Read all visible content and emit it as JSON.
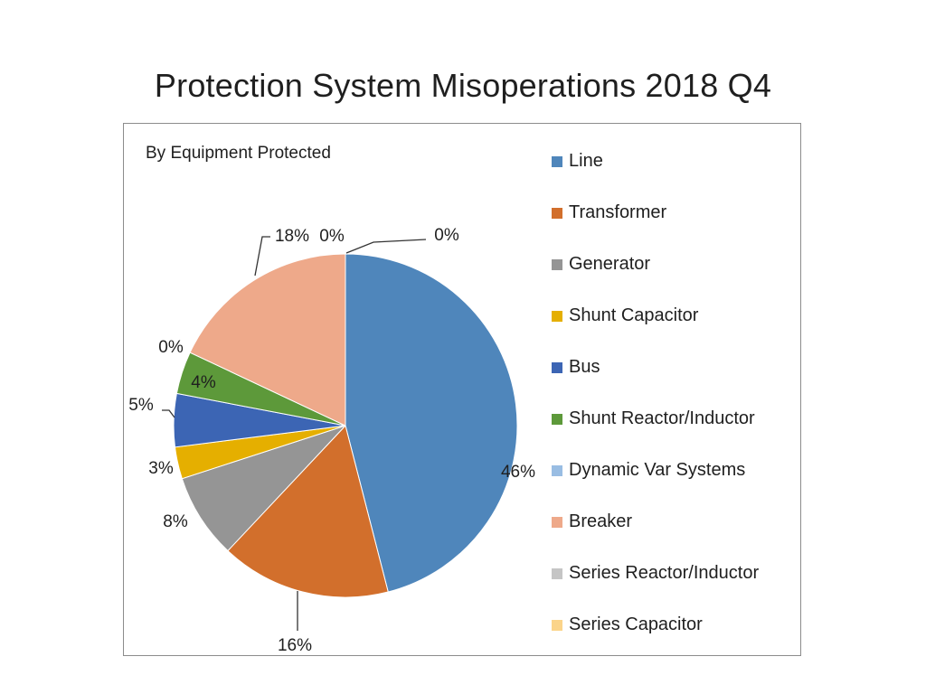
{
  "title": "Protection System Misoperations 2018 Q4",
  "chart_data": {
    "type": "pie",
    "title": "Protection System Misoperations 2018 Q4",
    "subtitle": "By Equipment Protected",
    "start_angle_deg": 0,
    "direction": "clockwise",
    "legend_position": "right",
    "slices": [
      {
        "name": "Line",
        "value": 46,
        "label": "46%",
        "color": "#4F86BB"
      },
      {
        "name": "Transformer",
        "value": 16,
        "label": "16%",
        "color": "#D26F2C"
      },
      {
        "name": "Generator",
        "value": 8,
        "label": "8%",
        "color": "#959595"
      },
      {
        "name": "Shunt Capacitor",
        "value": 3,
        "label": "3%",
        "color": "#E5AF00"
      },
      {
        "name": "Bus",
        "value": 5,
        "label": "5%",
        "color": "#3C65B4"
      },
      {
        "name": "Shunt Reactor/Inductor",
        "value": 4,
        "label": "4%",
        "color": "#5D993A"
      },
      {
        "name": "Dynamic Var Systems",
        "value": 0,
        "label": "0%",
        "color": "#99BDE3"
      },
      {
        "name": "Breaker",
        "value": 18,
        "label": "18%",
        "color": "#EEA98A"
      },
      {
        "name": "Series Reactor/Inductor",
        "value": 0,
        "label": "0%",
        "color": "#C5C5C5"
      },
      {
        "name": "Series Capacitor",
        "value": 0,
        "label": "0%",
        "color": "#FBD48A"
      }
    ]
  }
}
